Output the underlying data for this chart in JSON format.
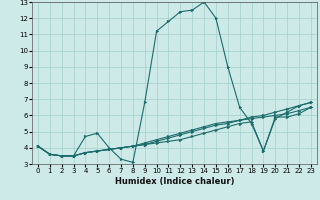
{
  "xlabel": "Humidex (Indice chaleur)",
  "xlim": [
    -0.5,
    23.5
  ],
  "ylim": [
    3,
    13
  ],
  "xticks": [
    0,
    1,
    2,
    3,
    4,
    5,
    6,
    7,
    8,
    9,
    10,
    11,
    12,
    13,
    14,
    15,
    16,
    17,
    18,
    19,
    20,
    21,
    22,
    23
  ],
  "yticks": [
    3,
    4,
    5,
    6,
    7,
    8,
    9,
    10,
    11,
    12,
    13
  ],
  "background_color": "#ceeae8",
  "grid_color": "#a8d4d0",
  "line_color": "#1a6b6b",
  "lines": [
    {
      "x": [
        0,
        1,
        2,
        3,
        4,
        5,
        6,
        7,
        8,
        9,
        10,
        11,
        12,
        13,
        14,
        15,
        16,
        17,
        18,
        19,
        20,
        21,
        22,
        23
      ],
      "y": [
        4.1,
        3.6,
        3.5,
        3.5,
        4.7,
        4.9,
        4.0,
        3.3,
        3.1,
        6.8,
        11.2,
        11.8,
        12.4,
        12.5,
        13.0,
        12.0,
        9.0,
        6.5,
        5.5,
        3.8,
        5.8,
        6.2,
        6.6,
        6.8
      ]
    },
    {
      "x": [
        0,
        1,
        2,
        3,
        4,
        5,
        6,
        7,
        8,
        9,
        10,
        11,
        12,
        13,
        14,
        15,
        16,
        17,
        18,
        19,
        20,
        21,
        22,
        23
      ],
      "y": [
        4.1,
        3.6,
        3.5,
        3.5,
        3.7,
        3.8,
        3.9,
        4.0,
        4.1,
        4.2,
        4.4,
        4.6,
        4.8,
        5.0,
        5.2,
        5.4,
        5.5,
        5.7,
        5.9,
        6.0,
        6.2,
        6.4,
        6.6,
        6.8
      ]
    },
    {
      "x": [
        0,
        1,
        2,
        3,
        4,
        5,
        6,
        7,
        8,
        9,
        10,
        11,
        12,
        13,
        14,
        15,
        16,
        17,
        18,
        19,
        20,
        21,
        22,
        23
      ],
      "y": [
        4.1,
        3.6,
        3.5,
        3.5,
        3.7,
        3.8,
        3.9,
        4.0,
        4.1,
        4.3,
        4.5,
        4.7,
        4.9,
        5.1,
        5.3,
        5.5,
        5.6,
        5.7,
        5.8,
        5.9,
        6.0,
        6.1,
        6.3,
        6.5
      ]
    },
    {
      "x": [
        0,
        1,
        2,
        3,
        4,
        5,
        6,
        7,
        8,
        9,
        10,
        11,
        12,
        13,
        14,
        15,
        16,
        17,
        18,
        19,
        20,
        21,
        22,
        23
      ],
      "y": [
        4.1,
        3.6,
        3.5,
        3.5,
        3.7,
        3.8,
        3.9,
        4.0,
        4.1,
        4.2,
        4.3,
        4.4,
        4.5,
        4.7,
        4.9,
        5.1,
        5.3,
        5.5,
        5.6,
        3.8,
        5.9,
        5.9,
        6.1,
        6.5
      ]
    }
  ]
}
